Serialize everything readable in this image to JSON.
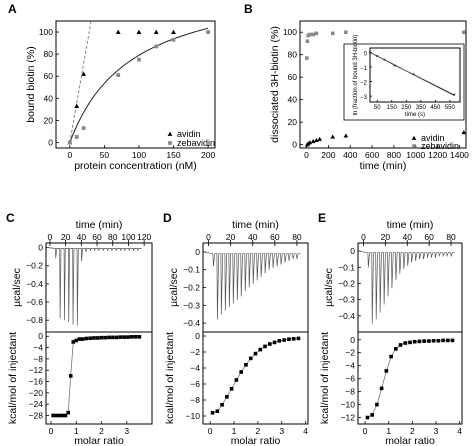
{
  "chart_data": [
    {
      "panel": "A",
      "type": "scatter",
      "xlabel": "protein concentration (nM)",
      "ylabel": "bound biotin (%)",
      "xlim": [
        -20,
        210
      ],
      "ylim": [
        -5,
        110
      ],
      "xticks": [
        0,
        50,
        100,
        150,
        200
      ],
      "yticks": [
        0,
        20,
        40,
        60,
        80,
        100
      ],
      "legend_position": "bottom-right",
      "series": [
        {
          "name": "avidin",
          "marker": "triangle",
          "x": [
            0,
            10,
            20,
            70,
            100,
            125,
            150
          ],
          "y": [
            0,
            33,
            62,
            100,
            100,
            100,
            100
          ]
        },
        {
          "name": "zebavidin",
          "marker": "square",
          "x": [
            0,
            10,
            20,
            70,
            100,
            125,
            150,
            200
          ],
          "y": [
            0,
            5,
            13,
            61,
            75,
            87,
            93,
            100
          ]
        }
      ],
      "fits": [
        {
          "style": "dashed",
          "x": [
            0,
            28
          ],
          "y": [
            0,
            100
          ]
        },
        {
          "style": "solid",
          "kind": "saturation",
          "bmax": 150,
          "kd": 90,
          "xrange": [
            0,
            200
          ]
        }
      ]
    },
    {
      "panel": "B",
      "type": "scatter",
      "xlabel": "time (min)",
      "ylabel": "dissociated 3H-biotin (%)",
      "xlim": [
        -60,
        1460
      ],
      "ylim": [
        -3,
        110
      ],
      "xticks": [
        0,
        200,
        400,
        600,
        800,
        1000,
        1200,
        1400
      ],
      "yticks": [
        0,
        20,
        40,
        60,
        80,
        100
      ],
      "legend_position": "bottom-right",
      "series": [
        {
          "name": "avidin",
          "marker": "triangle",
          "x": [
            5,
            15,
            30,
            60,
            90,
            120,
            240,
            360,
            1440
          ],
          "y": [
            0,
            1,
            2,
            3,
            4,
            5,
            7,
            8,
            11
          ]
        },
        {
          "name": "zebavidin",
          "marker": "square",
          "x": [
            2,
            8,
            15,
            30,
            60,
            90,
            240,
            360,
            1440
          ],
          "y": [
            77,
            92,
            97,
            98,
            98,
            99,
            99,
            100,
            100
          ]
        }
      ],
      "inset": {
        "xlabel": "time (s)",
        "ylabel": "ln (fraction of bound 3H-biotin)",
        "xlim": [
          0,
          620
        ],
        "ylim": [
          -3.4,
          0.3
        ],
        "xticks": [
          50,
          150,
          250,
          350,
          450,
          550
        ],
        "yticks": [
          0,
          -1,
          -2,
          -3
        ],
        "points": {
          "x": [
            0,
            50,
            100,
            170,
            300,
            580
          ],
          "y": [
            0,
            -0.25,
            -0.5,
            -0.9,
            -1.5,
            -2.9
          ]
        },
        "fit": {
          "x": [
            0,
            580
          ],
          "y": [
            0,
            -2.95
          ]
        }
      }
    },
    {
      "panel": "C",
      "type": "line",
      "top": {
        "xlabel": "time (min)",
        "ylabel": "µcal/sec",
        "xlim": [
          -5,
          130
        ],
        "ylim": [
          -0.93,
          0.05
        ],
        "xticks": [
          0,
          20,
          40,
          60,
          80,
          100,
          120
        ],
        "yticks": [
          0,
          -0.2,
          -0.4,
          -0.6,
          -0.8
        ],
        "injections": {
          "start": 7,
          "interval": 5.5,
          "peaks": [
            -0.12,
            -0.78,
            -0.8,
            -0.82,
            -0.85,
            -0.86,
            -0.15,
            -0.05,
            -0.03,
            -0.03,
            -0.03,
            -0.03,
            -0.03,
            -0.03,
            -0.03,
            -0.03,
            -0.03,
            -0.03,
            -0.03,
            -0.03
          ]
        }
      },
      "bottom": {
        "xlabel": "molar ratio",
        "ylabel": "kcal/mol of injectant",
        "xlim": [
          -0.2,
          4.0
        ],
        "ylim": [
          -31,
          1.5
        ],
        "xticks": [
          0,
          1,
          2,
          3
        ],
        "yticks": [
          0,
          -4,
          -8,
          -12,
          -16,
          -20,
          -24,
          -28
        ],
        "x": [
          0.08,
          0.2,
          0.33,
          0.45,
          0.57,
          0.68,
          0.78,
          0.88,
          1.0,
          1.12,
          1.25,
          1.4,
          1.55,
          1.7,
          1.85,
          2.0,
          2.15,
          2.3,
          2.45,
          2.6,
          2.75,
          2.9,
          3.05,
          3.2,
          3.35,
          3.5
        ],
        "y": [
          -28,
          -28,
          -28,
          -28,
          -28,
          -27,
          -14,
          -2,
          -1.5,
          -1,
          -1,
          -0.8,
          -0.7,
          -0.6,
          -0.6,
          -0.5,
          -0.5,
          -0.4,
          -0.4,
          -0.4,
          -0.3,
          -0.3,
          -0.3,
          -0.2,
          -0.2,
          -0.2
        ]
      }
    },
    {
      "panel": "D",
      "type": "line",
      "top": {
        "xlabel": "time (min)",
        "ylabel": "µcal/sec",
        "xlim": [
          -5,
          90
        ],
        "ylim": [
          -0.45,
          0.05
        ],
        "xticks": [
          0,
          20,
          40,
          60,
          80
        ],
        "yticks": [
          0,
          -0.1,
          -0.2,
          -0.3,
          -0.4
        ],
        "injections": {
          "start": 4,
          "interval": 3.6,
          "peaks": [
            -0.08,
            -0.38,
            -0.35,
            -0.33,
            -0.31,
            -0.29,
            -0.27,
            -0.25,
            -0.22,
            -0.2,
            -0.18,
            -0.16,
            -0.14,
            -0.12,
            -0.1,
            -0.09,
            -0.08,
            -0.07,
            -0.06,
            -0.05,
            -0.04,
            -0.04
          ]
        }
      },
      "bottom": {
        "xlabel": "molar ratio",
        "ylabel": "kcal/mol of injectant",
        "xlim": [
          -0.3,
          4.1
        ],
        "ylim": [
          -11,
          0.5
        ],
        "xticks": [
          0,
          1,
          2,
          3,
          4
        ],
        "yticks": [
          0,
          -2,
          -4,
          -6,
          -8,
          -10
        ],
        "x": [
          0.1,
          0.3,
          0.5,
          0.7,
          0.9,
          1.1,
          1.3,
          1.5,
          1.7,
          1.9,
          2.1,
          2.3,
          2.5,
          2.7,
          2.9,
          3.1,
          3.3,
          3.5,
          3.7
        ],
        "y": [
          -9.6,
          -9.4,
          -8.6,
          -7.6,
          -6.6,
          -5.5,
          -4.5,
          -3.6,
          -2.8,
          -2.2,
          -1.7,
          -1.3,
          -1.0,
          -0.8,
          -0.6,
          -0.5,
          -0.4,
          -0.35,
          -0.3
        ]
      }
    },
    {
      "panel": "E",
      "type": "line",
      "top": {
        "xlabel": "time (min)",
        "ylabel": "µcal/sec",
        "xlim": [
          -5,
          90
        ],
        "ylim": [
          -0.5,
          0.05
        ],
        "xticks": [
          0,
          20,
          40,
          60,
          80
        ],
        "yticks": [
          0,
          -0.1,
          -0.2,
          -0.3,
          -0.4
        ],
        "injections": {
          "start": 4,
          "interval": 3.6,
          "peaks": [
            -0.1,
            -0.45,
            -0.42,
            -0.38,
            -0.33,
            -0.28,
            -0.23,
            -0.18,
            -0.14,
            -0.11,
            -0.09,
            -0.07,
            -0.06,
            -0.05,
            -0.05,
            -0.04,
            -0.04,
            -0.04,
            -0.03,
            -0.03,
            -0.03,
            -0.03
          ]
        }
      },
      "bottom": {
        "xlabel": "molar ratio",
        "ylabel": "kcal/mol of injectant",
        "xlim": [
          -0.3,
          4.1
        ],
        "ylim": [
          -13,
          1.2
        ],
        "xticks": [
          0,
          1,
          2,
          3,
          4
        ],
        "yticks": [
          0,
          -2,
          -4,
          -6,
          -8,
          -10,
          -12
        ],
        "x": [
          0.1,
          0.3,
          0.5,
          0.7,
          0.9,
          1.1,
          1.3,
          1.5,
          1.7,
          1.9,
          2.1,
          2.3,
          2.5,
          2.7,
          2.9,
          3.1,
          3.3,
          3.5,
          3.7
        ],
        "y": [
          -12,
          -11.6,
          -10,
          -7.5,
          -4.8,
          -2.6,
          -1.4,
          -0.8,
          -0.5,
          -0.4,
          -0.3,
          -0.25,
          -0.2,
          -0.2,
          -0.15,
          -0.15,
          -0.1,
          -0.1,
          -0.1
        ]
      }
    }
  ]
}
